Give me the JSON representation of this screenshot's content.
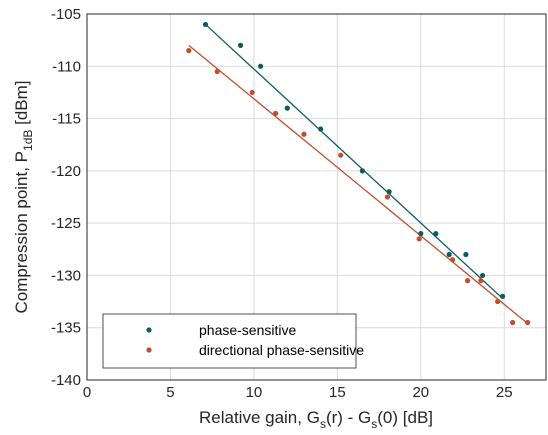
{
  "chart_data": {
    "type": "scatter",
    "title": "",
    "xlabel": "Relative gain, G_s(r) - G_s(0) [dB]",
    "ylabel": "Compression point, P_1dB [dBm]",
    "xlim": [
      0,
      27.5
    ],
    "ylim": [
      -140,
      -105
    ],
    "xticks": [
      0,
      5,
      10,
      15,
      20,
      25
    ],
    "yticks": [
      -105,
      -110,
      -115,
      -120,
      -125,
      -130,
      -135,
      -140
    ],
    "grid": true,
    "legend": "bottom-left",
    "series": [
      {
        "name": "phase-sensitive",
        "color": "#0d5c63",
        "points": [
          {
            "x": 7.1,
            "y": -106.0
          },
          {
            "x": 9.2,
            "y": -108.0
          },
          {
            "x": 10.4,
            "y": -110.0
          },
          {
            "x": 12.0,
            "y": -114.0
          },
          {
            "x": 14.0,
            "y": -116.0
          },
          {
            "x": 16.5,
            "y": -120.0
          },
          {
            "x": 18.1,
            "y": -122.0
          },
          {
            "x": 20.0,
            "y": -126.0
          },
          {
            "x": 20.9,
            "y": -126.0
          },
          {
            "x": 21.7,
            "y": -128.0
          },
          {
            "x": 22.7,
            "y": -128.0
          },
          {
            "x": 23.7,
            "y": -130.0
          },
          {
            "x": 24.9,
            "y": -132.0
          }
        ],
        "fit": {
          "x": [
            7.1,
            24.9
          ],
          "y": [
            -106.0,
            -132.2
          ]
        }
      },
      {
        "name": "directional phase-sensitive",
        "color": "#c24e30",
        "points": [
          {
            "x": 6.1,
            "y": -108.5
          },
          {
            "x": 7.8,
            "y": -110.5
          },
          {
            "x": 9.9,
            "y": -112.5
          },
          {
            "x": 11.3,
            "y": -114.5
          },
          {
            "x": 13.0,
            "y": -116.5
          },
          {
            "x": 15.2,
            "y": -118.5
          },
          {
            "x": 18.0,
            "y": -122.5
          },
          {
            "x": 19.9,
            "y": -126.5
          },
          {
            "x": 21.9,
            "y": -128.5
          },
          {
            "x": 22.8,
            "y": -130.5
          },
          {
            "x": 23.6,
            "y": -130.5
          },
          {
            "x": 24.6,
            "y": -132.5
          },
          {
            "x": 25.5,
            "y": -134.5
          },
          {
            "x": 26.4,
            "y": -134.5
          }
        ],
        "fit": {
          "x": [
            6.1,
            26.4
          ],
          "y": [
            -108.0,
            -134.6
          ]
        }
      }
    ]
  }
}
